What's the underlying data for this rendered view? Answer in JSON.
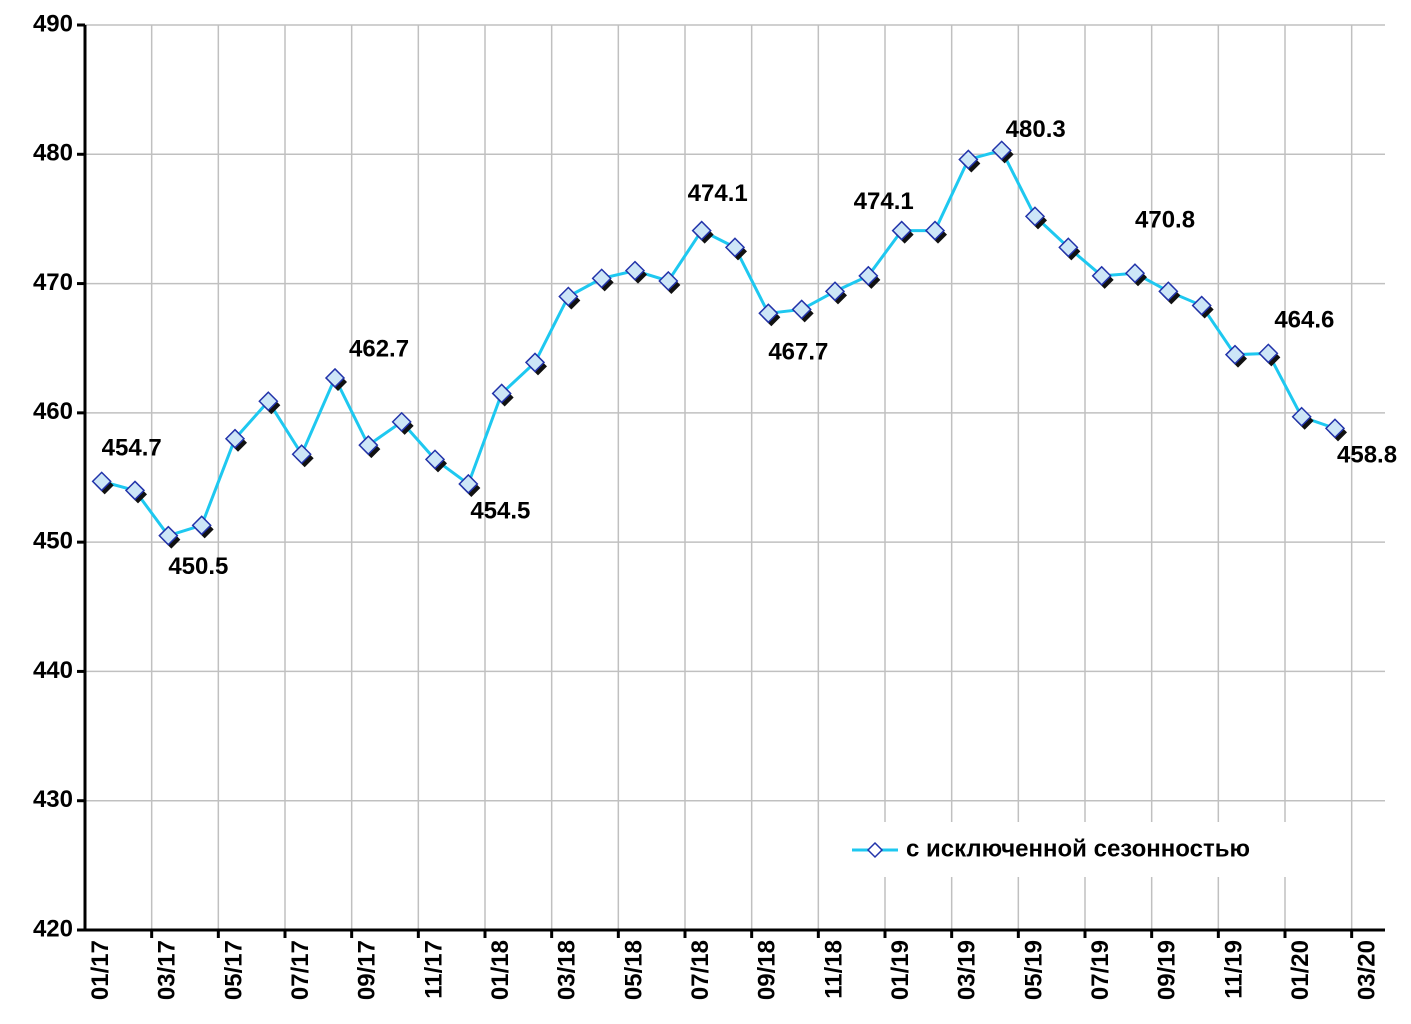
{
  "chart_data": {
    "type": "line",
    "categories": [
      "01/17",
      null,
      "03/17",
      null,
      "05/17",
      null,
      "07/17",
      null,
      "09/17",
      null,
      "11/17",
      null,
      "01/18",
      null,
      "03/18",
      null,
      "05/18",
      null,
      "07/18",
      null,
      "09/18",
      null,
      "11/18",
      null,
      "01/19",
      null,
      "03/19",
      null,
      "05/19",
      null,
      "07/19",
      null,
      "09/19",
      null,
      "11/19",
      null,
      "01/20",
      null,
      "03/20"
    ],
    "series": [
      {
        "name": "с исключенной сезонностью",
        "color": "#1ec8f0",
        "values": [
          454.7,
          454.0,
          450.5,
          451.3,
          458.0,
          460.9,
          456.8,
          462.7,
          457.5,
          459.3,
          456.4,
          454.5,
          461.5,
          463.9,
          469.0,
          470.4,
          471.0,
          470.2,
          474.1,
          472.8,
          467.7,
          468.0,
          469.4,
          470.6,
          474.1,
          474.1,
          479.6,
          480.3,
          475.2,
          472.8,
          470.6,
          470.8,
          469.4,
          468.3,
          464.5,
          464.6,
          459.7,
          458.8,
          null
        ],
        "value_labels": [
          "454.7",
          null,
          "450.5",
          null,
          null,
          null,
          null,
          "462.7",
          null,
          null,
          null,
          "454.5",
          null,
          null,
          null,
          null,
          null,
          null,
          "474.1",
          null,
          "467.7",
          null,
          null,
          null,
          "474.1",
          null,
          null,
          "480.3",
          null,
          null,
          null,
          "470.8",
          null,
          null,
          null,
          "464.6",
          null,
          "458.8",
          null
        ]
      }
    ],
    "ylim": [
      420,
      490
    ],
    "yticks": [
      420,
      430,
      440,
      450,
      460,
      470,
      480,
      490
    ],
    "grid": true,
    "legend": "lower right"
  }
}
